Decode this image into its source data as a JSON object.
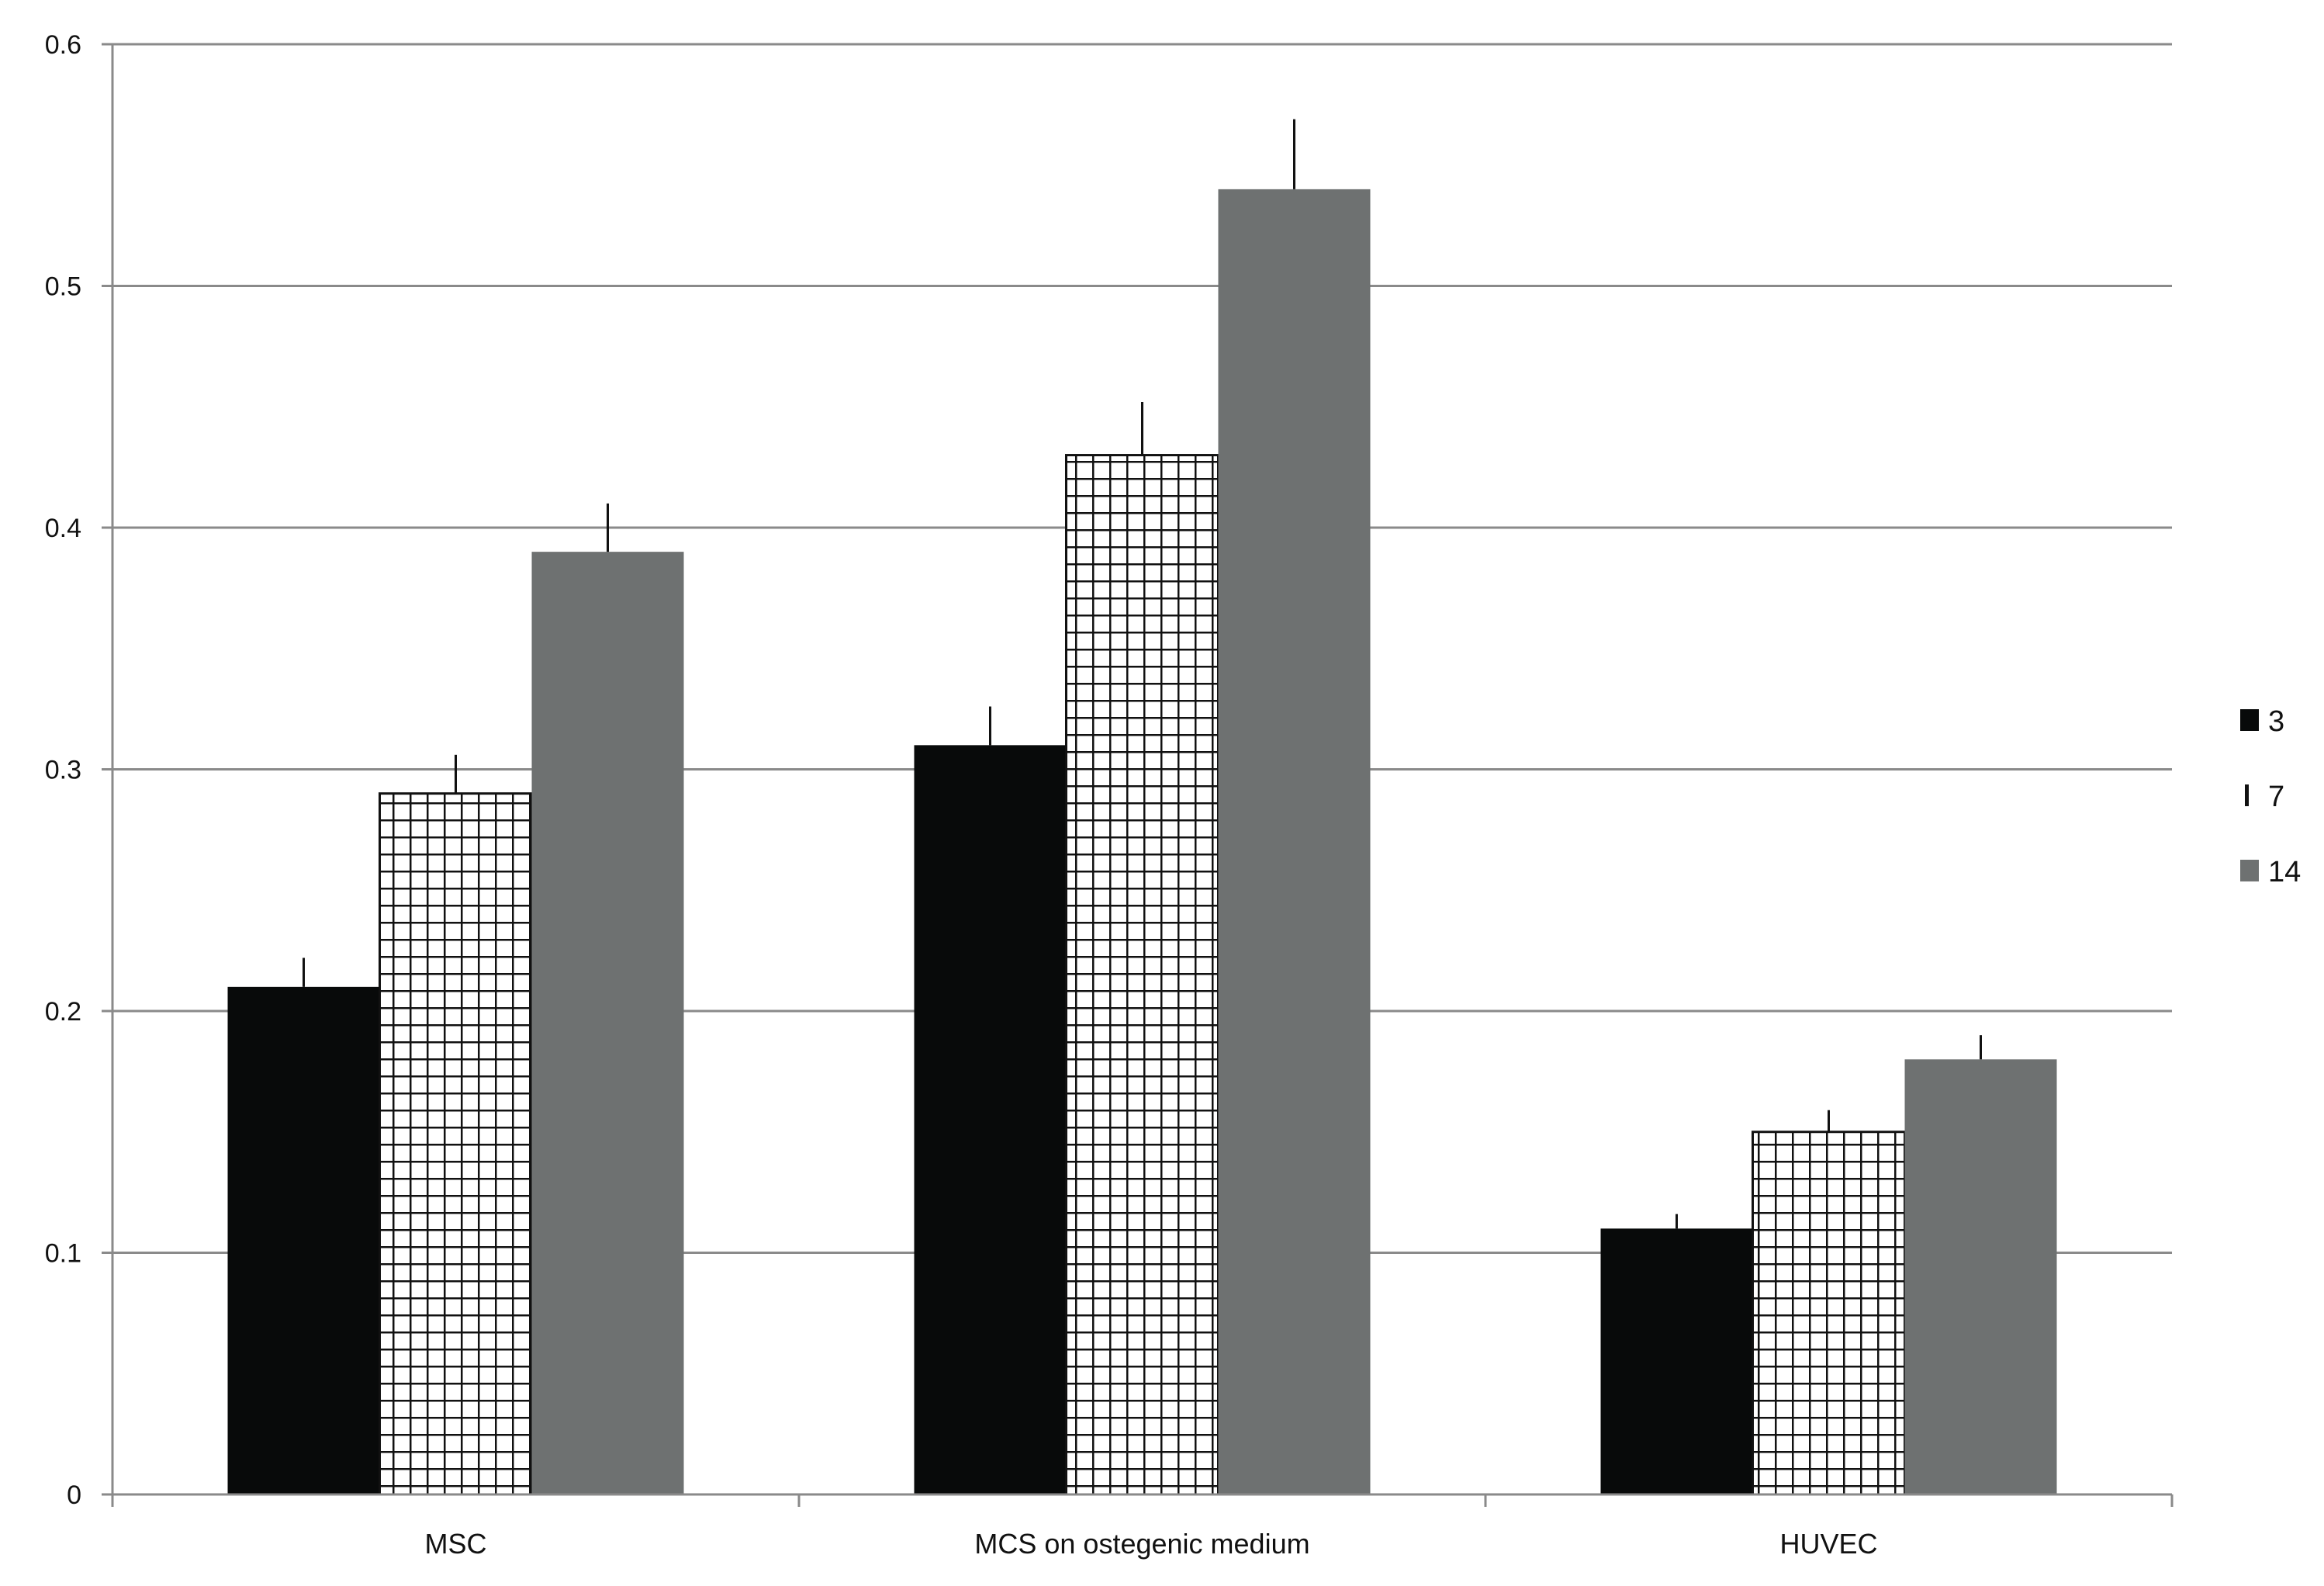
{
  "chart_data": {
    "type": "bar",
    "title": "",
    "xlabel": "",
    "ylabel": "",
    "categories": [
      "MSC",
      "MCS on ostegenic medium",
      "HUVEC"
    ],
    "series": [
      {
        "name": "3",
        "values": [
          0.21,
          0.31,
          0.11
        ],
        "errors": [
          0.012,
          0.016,
          0.006
        ],
        "fill": "#080a0a",
        "pattern": "solid"
      },
      {
        "name": "7",
        "values": [
          0.29,
          0.43,
          0.15
        ],
        "errors": [
          0.016,
          0.022,
          0.009
        ],
        "fill": "#ffffff",
        "pattern": "grid"
      },
      {
        "name": "14",
        "values": [
          0.39,
          0.54,
          0.18
        ],
        "errors": [
          0.02,
          0.029,
          0.01
        ],
        "fill": "#6e7171",
        "pattern": "solid"
      }
    ],
    "ylim": [
      0,
      0.6
    ],
    "yticks": [
      "0",
      "0.1",
      "0.2",
      "0.3",
      "0.4",
      "0.5",
      "0.6"
    ],
    "grid": true,
    "legend_position": "right"
  }
}
